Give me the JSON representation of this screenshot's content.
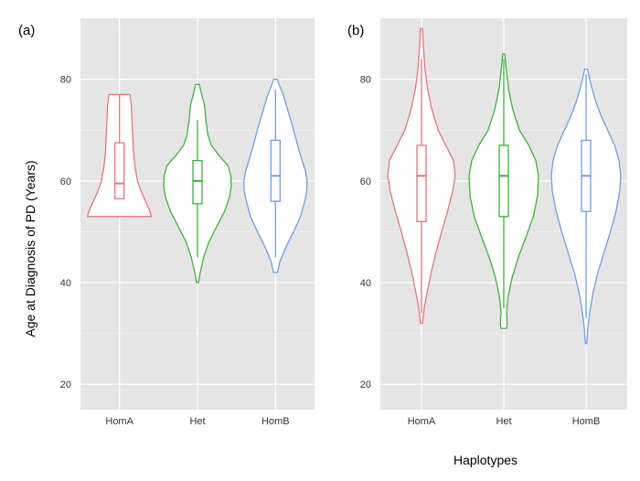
{
  "figure": {
    "ylabel": "Age at Diagnosis of PD (Years)",
    "xlabel": "Haplotypes"
  },
  "colors": {
    "panel_bg": "#e5e5e5",
    "grid": "#ffffff",
    "HomA": "#e8747a",
    "Het": "#3cb33c",
    "HomB": "#6d9eeb"
  },
  "chart_data": [
    {
      "type": "violin",
      "panel_label": "(a)",
      "categories": [
        "HomA",
        "Het",
        "HomB"
      ],
      "yticks": [
        20,
        40,
        60,
        80
      ],
      "ylim": [
        15,
        92
      ],
      "grid": true,
      "series": [
        {
          "category": "HomA",
          "min": 53,
          "q1": 56.5,
          "median": 59.5,
          "q3": 67.5,
          "max": 77,
          "whisker_low": 56.5,
          "whisker_high": 77,
          "density": [
            [
              53,
              0.92
            ],
            [
              54,
              0.88
            ],
            [
              56,
              0.75
            ],
            [
              58,
              0.62
            ],
            [
              60,
              0.52
            ],
            [
              63,
              0.44
            ],
            [
              66,
              0.4
            ],
            [
              69,
              0.38
            ],
            [
              72,
              0.36
            ],
            [
              75,
              0.34
            ],
            [
              77,
              0.3
            ]
          ]
        },
        {
          "category": "Het",
          "min": 40,
          "q1": 55.5,
          "median": 60,
          "q3": 64,
          "max": 79,
          "whisker_low": 45,
          "whisker_high": 72,
          "density": [
            [
              40,
              0.03
            ],
            [
              42,
              0.08
            ],
            [
              45,
              0.18
            ],
            [
              48,
              0.33
            ],
            [
              51,
              0.55
            ],
            [
              54,
              0.78
            ],
            [
              57,
              0.93
            ],
            [
              59,
              0.97
            ],
            [
              61,
              0.96
            ],
            [
              63,
              0.88
            ],
            [
              65,
              0.62
            ],
            [
              67,
              0.4
            ],
            [
              69,
              0.3
            ],
            [
              72,
              0.24
            ],
            [
              75,
              0.2
            ],
            [
              77,
              0.12
            ],
            [
              79,
              0.05
            ]
          ]
        },
        {
          "category": "HomB",
          "min": 42,
          "q1": 56,
          "median": 61,
          "q3": 68,
          "max": 80,
          "whisker_low": 45,
          "whisker_high": 78,
          "density": [
            [
              42,
              0.06
            ],
            [
              44,
              0.12
            ],
            [
              47,
              0.3
            ],
            [
              50,
              0.52
            ],
            [
              53,
              0.72
            ],
            [
              56,
              0.84
            ],
            [
              58,
              0.9
            ],
            [
              60,
              0.91
            ],
            [
              62,
              0.86
            ],
            [
              65,
              0.72
            ],
            [
              68,
              0.6
            ],
            [
              71,
              0.48
            ],
            [
              74,
              0.35
            ],
            [
              77,
              0.22
            ],
            [
              79,
              0.1
            ],
            [
              80,
              0.05
            ]
          ]
        }
      ]
    },
    {
      "type": "violin",
      "panel_label": "(b)",
      "categories": [
        "HomA",
        "Het",
        "HomB"
      ],
      "yticks": [
        20,
        40,
        60,
        80
      ],
      "ylim": [
        15,
        92
      ],
      "grid": true,
      "series": [
        {
          "category": "HomA",
          "min": 32,
          "q1": 52,
          "median": 61,
          "q3": 67,
          "max": 90,
          "whisker_low": 34,
          "whisker_high": 84,
          "density": [
            [
              32,
              0.03
            ],
            [
              35,
              0.08
            ],
            [
              38,
              0.16
            ],
            [
              42,
              0.28
            ],
            [
              46,
              0.42
            ],
            [
              50,
              0.58
            ],
            [
              54,
              0.75
            ],
            [
              58,
              0.9
            ],
            [
              61,
              0.97
            ],
            [
              64,
              0.92
            ],
            [
              67,
              0.7
            ],
            [
              70,
              0.48
            ],
            [
              74,
              0.3
            ],
            [
              78,
              0.18
            ],
            [
              82,
              0.1
            ],
            [
              86,
              0.06
            ],
            [
              90,
              0.03
            ]
          ]
        },
        {
          "category": "Het",
          "min": 31,
          "q1": 53,
          "median": 61,
          "q3": 67,
          "max": 85,
          "whisker_low": 35,
          "whisker_high": 84,
          "density": [
            [
              31,
              0.08
            ],
            [
              32,
              0.1
            ],
            [
              34,
              0.08
            ],
            [
              37,
              0.12
            ],
            [
              41,
              0.24
            ],
            [
              45,
              0.42
            ],
            [
              49,
              0.64
            ],
            [
              53,
              0.85
            ],
            [
              57,
              0.97
            ],
            [
              61,
              1.0
            ],
            [
              64,
              0.92
            ],
            [
              67,
              0.72
            ],
            [
              70,
              0.45
            ],
            [
              74,
              0.26
            ],
            [
              78,
              0.14
            ],
            [
              82,
              0.07
            ],
            [
              85,
              0.03
            ]
          ]
        },
        {
          "category": "HomB",
          "min": 28,
          "q1": 54,
          "median": 61,
          "q3": 68,
          "max": 82,
          "whisker_low": 33,
          "whisker_high": 81,
          "density": [
            [
              28,
              0.02
            ],
            [
              31,
              0.05
            ],
            [
              34,
              0.1
            ],
            [
              38,
              0.2
            ],
            [
              42,
              0.34
            ],
            [
              46,
              0.52
            ],
            [
              50,
              0.7
            ],
            [
              54,
              0.86
            ],
            [
              58,
              0.97
            ],
            [
              61,
              1.0
            ],
            [
              64,
              0.95
            ],
            [
              67,
              0.82
            ],
            [
              70,
              0.62
            ],
            [
              73,
              0.42
            ],
            [
              76,
              0.26
            ],
            [
              79,
              0.14
            ],
            [
              82,
              0.04
            ]
          ]
        }
      ]
    }
  ]
}
